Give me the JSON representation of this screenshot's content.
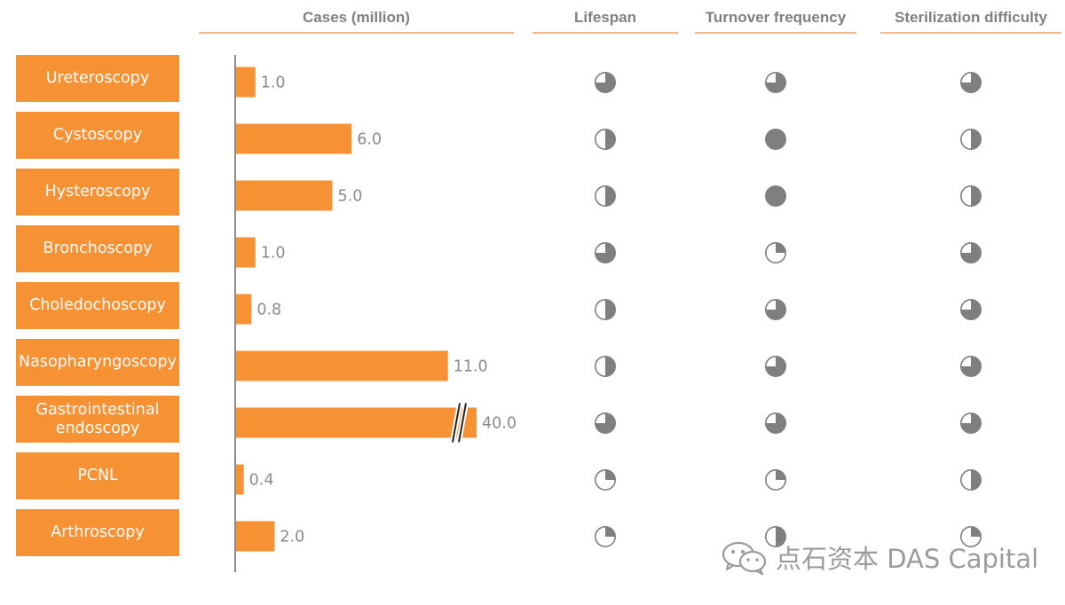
{
  "headers": {
    "cases": "Cases (million)",
    "lifespan": "Lifespan",
    "turnover": "Turnover frequency",
    "sterilization": "Sterilization difficulty"
  },
  "chart_data": {
    "type": "bar",
    "orientation": "horizontal",
    "title": "",
    "xlabel": "Cases (million)",
    "ylabel": "",
    "categories": [
      "Ureteroscopy",
      "Cystoscopy",
      "Hysteroscopy",
      "Bronchoscopy",
      "Choledochoscopy",
      "Nasopharyngoscopy",
      "Gastrointestinal endoscopy",
      "PCNL",
      "Arthroscopy"
    ],
    "values": [
      1.0,
      6.0,
      5.0,
      1.0,
      0.8,
      11.0,
      40.0,
      0.4,
      2.0
    ],
    "value_labels": [
      "1.0",
      "6.0",
      "5.0",
      "1.0",
      "0.8",
      "11.0",
      "40.0",
      "0.4",
      "2.0"
    ],
    "axis_break_after": 11.5,
    "broken_bar_index": 6,
    "bar_color": "#f79234",
    "grid": false,
    "legend": "none"
  },
  "ratings": {
    "scale": "harvey-ball quarters (1-4)",
    "lifespan": [
      3,
      2,
      2,
      3,
      2,
      2,
      3,
      1,
      1
    ],
    "turnover": [
      3,
      4,
      4,
      1,
      3,
      3,
      3,
      1,
      2
    ],
    "sterilization": [
      3,
      2,
      2,
      3,
      3,
      3,
      3,
      2,
      1
    ]
  },
  "colors": {
    "accent": "#f79234",
    "rule": "#f5b787",
    "ball_fill": "#7f7f7f",
    "text_gray": "#808080"
  },
  "watermark": {
    "icon": "wechat-icon",
    "text": "点石资本 DAS Capital"
  }
}
